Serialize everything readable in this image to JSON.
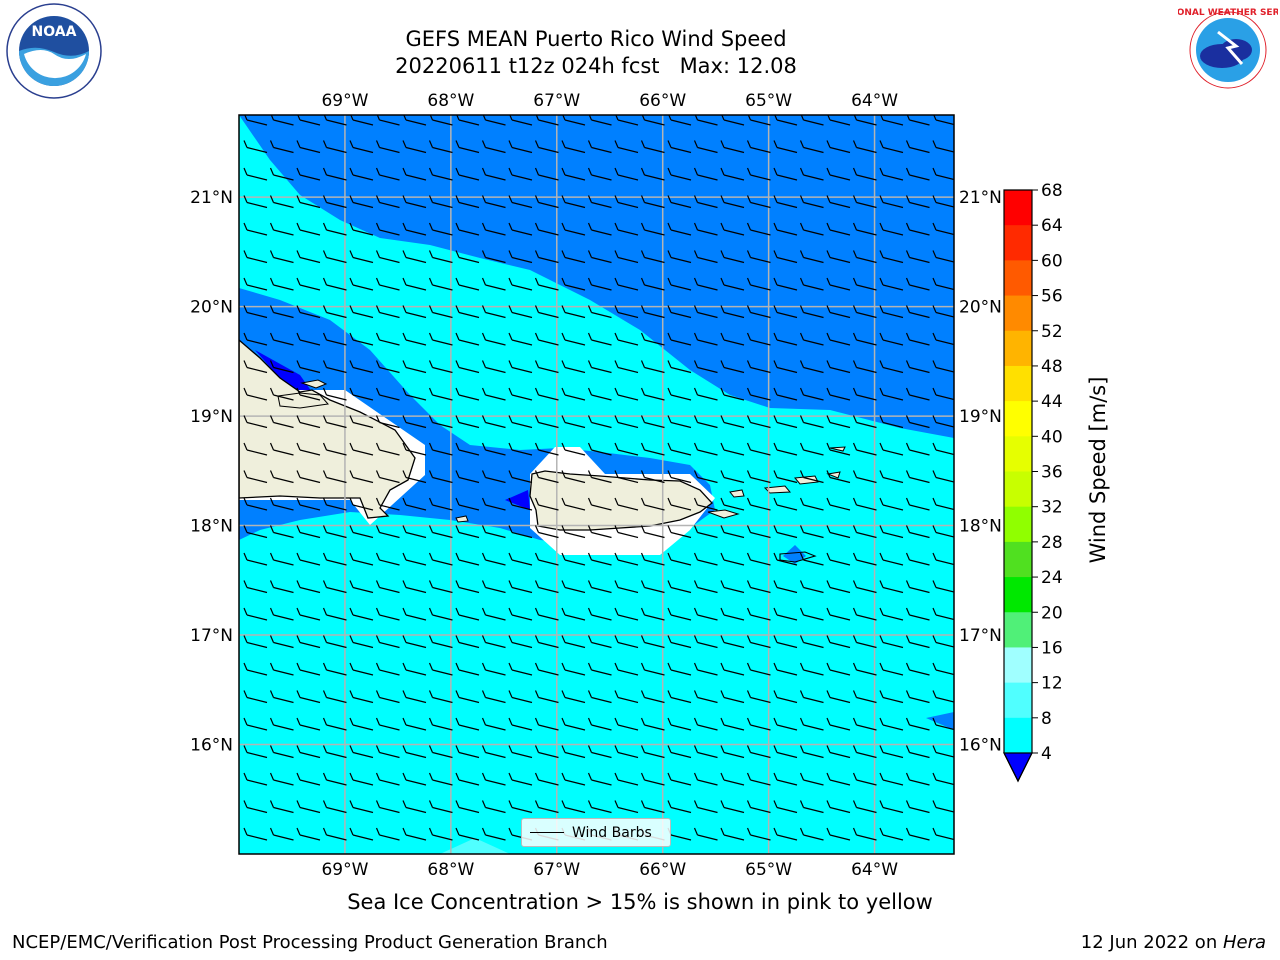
{
  "title": {
    "line1": "GEFS MEAN Puerto Rico Wind Speed",
    "line2": "20220611 t12z 024h fcst   Max: 12.08"
  },
  "map": {
    "lon_labels": [
      "69°W",
      "68°W",
      "67°W",
      "66°W",
      "65°W",
      "64°W"
    ],
    "lon_values": [
      -69,
      -68,
      -67,
      -66,
      -65,
      -64
    ],
    "lat_labels": [
      "21°N",
      "20°N",
      "19°N",
      "18°N",
      "17°N",
      "16°N"
    ],
    "lat_values": [
      21,
      20,
      19,
      18,
      17,
      16
    ],
    "extent": {
      "lon_min": -70,
      "lon_max": -63.25,
      "lat_min": 15,
      "lat_max": 21.75
    },
    "colors": {
      "ocean_fast": "#0080ff",
      "ocean_mid": "#00ffff",
      "land": "#efefdc",
      "peak": "#0000ff"
    }
  },
  "colorbar": {
    "label": "Wind Speed [m/s]",
    "ticks": [
      "68",
      "64",
      "60",
      "56",
      "52",
      "48",
      "44",
      "40",
      "36",
      "32",
      "28",
      "24",
      "20",
      "16",
      "12",
      "8",
      "4"
    ],
    "colors": [
      "#ff0000",
      "#ff2a00",
      "#ff5a00",
      "#ff8a00",
      "#ffb400",
      "#ffe000",
      "#ffff00",
      "#e6ff00",
      "#c8ff00",
      "#90ff00",
      "#50e020",
      "#00e800",
      "#50f078",
      "#a0ffff",
      "#50ffff",
      "#00ffff",
      "#0080ff"
    ],
    "under_color": "#0000ff"
  },
  "legend": {
    "label": "Wind Barbs"
  },
  "note": "Sea Ice Concentration > 15% is shown in pink to yellow",
  "footer": {
    "left": "NCEP/EMC/Verification Post Processing Product Generation Branch",
    "right_prefix": "12 Jun 2022 on ",
    "right_host": "Hera"
  },
  "logos": {
    "noaa_text": "NOAA",
    "nws_text": "NATIONAL WEATHER SERVICE"
  }
}
